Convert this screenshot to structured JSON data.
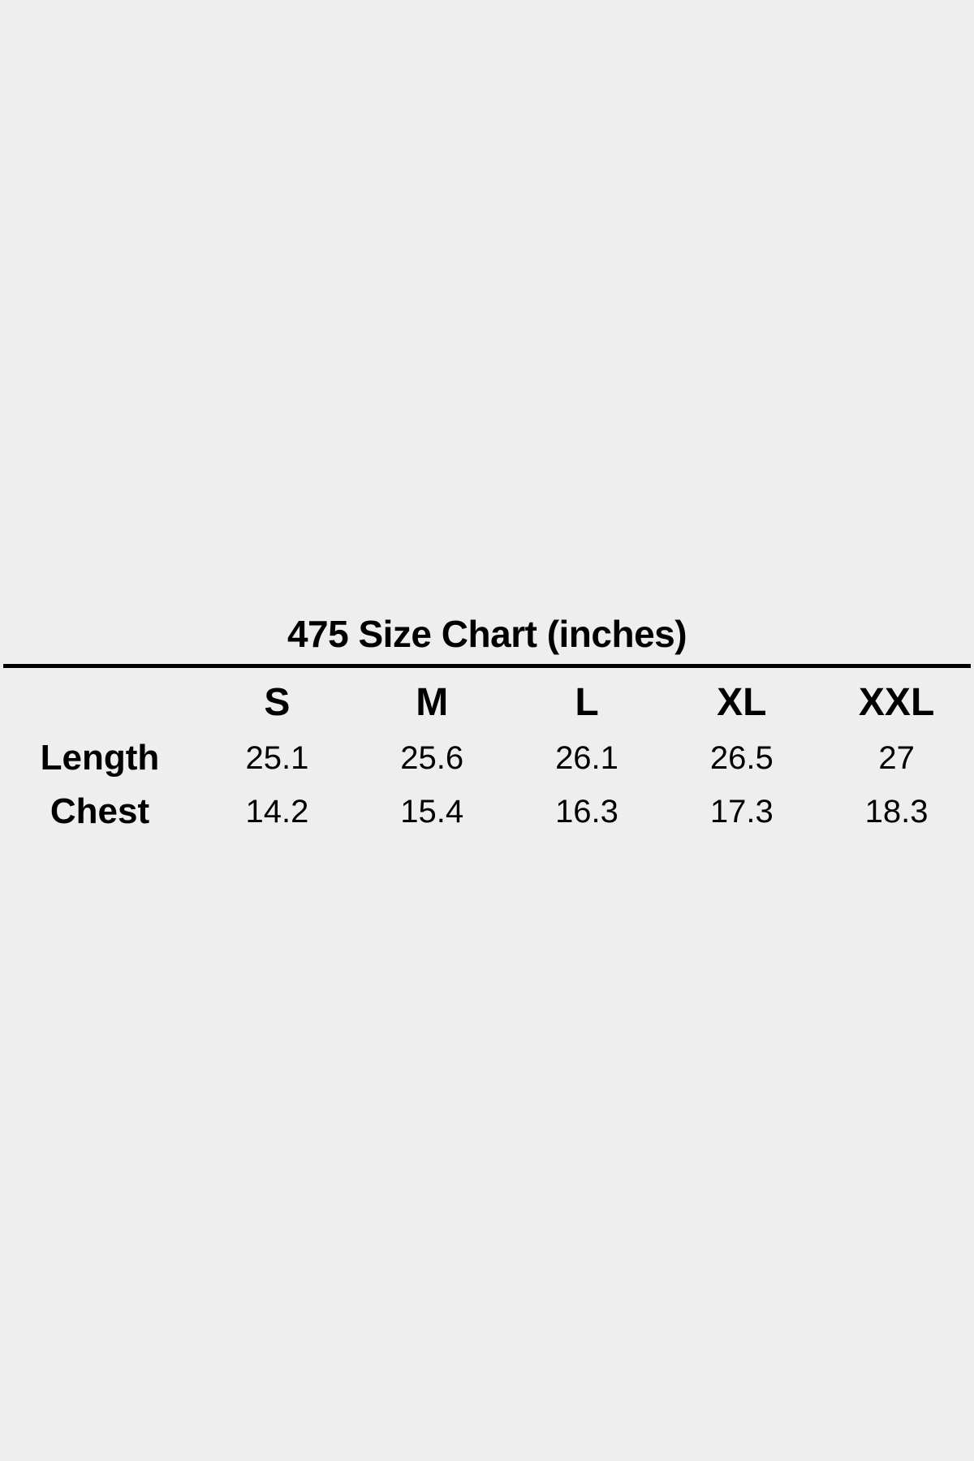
{
  "page": {
    "background": "#eeeeee",
    "text_color": "#000000",
    "rule_color": "#000000"
  },
  "chart_data": {
    "type": "table",
    "title": "475 Size Chart (inches)",
    "unit": "inches",
    "columns": [
      "",
      "S",
      "M",
      "L",
      "XL",
      "XXL"
    ],
    "rows": [
      {
        "label": "Length",
        "values": [
          "25.1",
          "25.6",
          "26.1",
          "26.5",
          "27"
        ]
      },
      {
        "label": "Chest",
        "values": [
          "14.2",
          "15.4",
          "16.3",
          "17.3",
          "18.3"
        ]
      }
    ]
  }
}
